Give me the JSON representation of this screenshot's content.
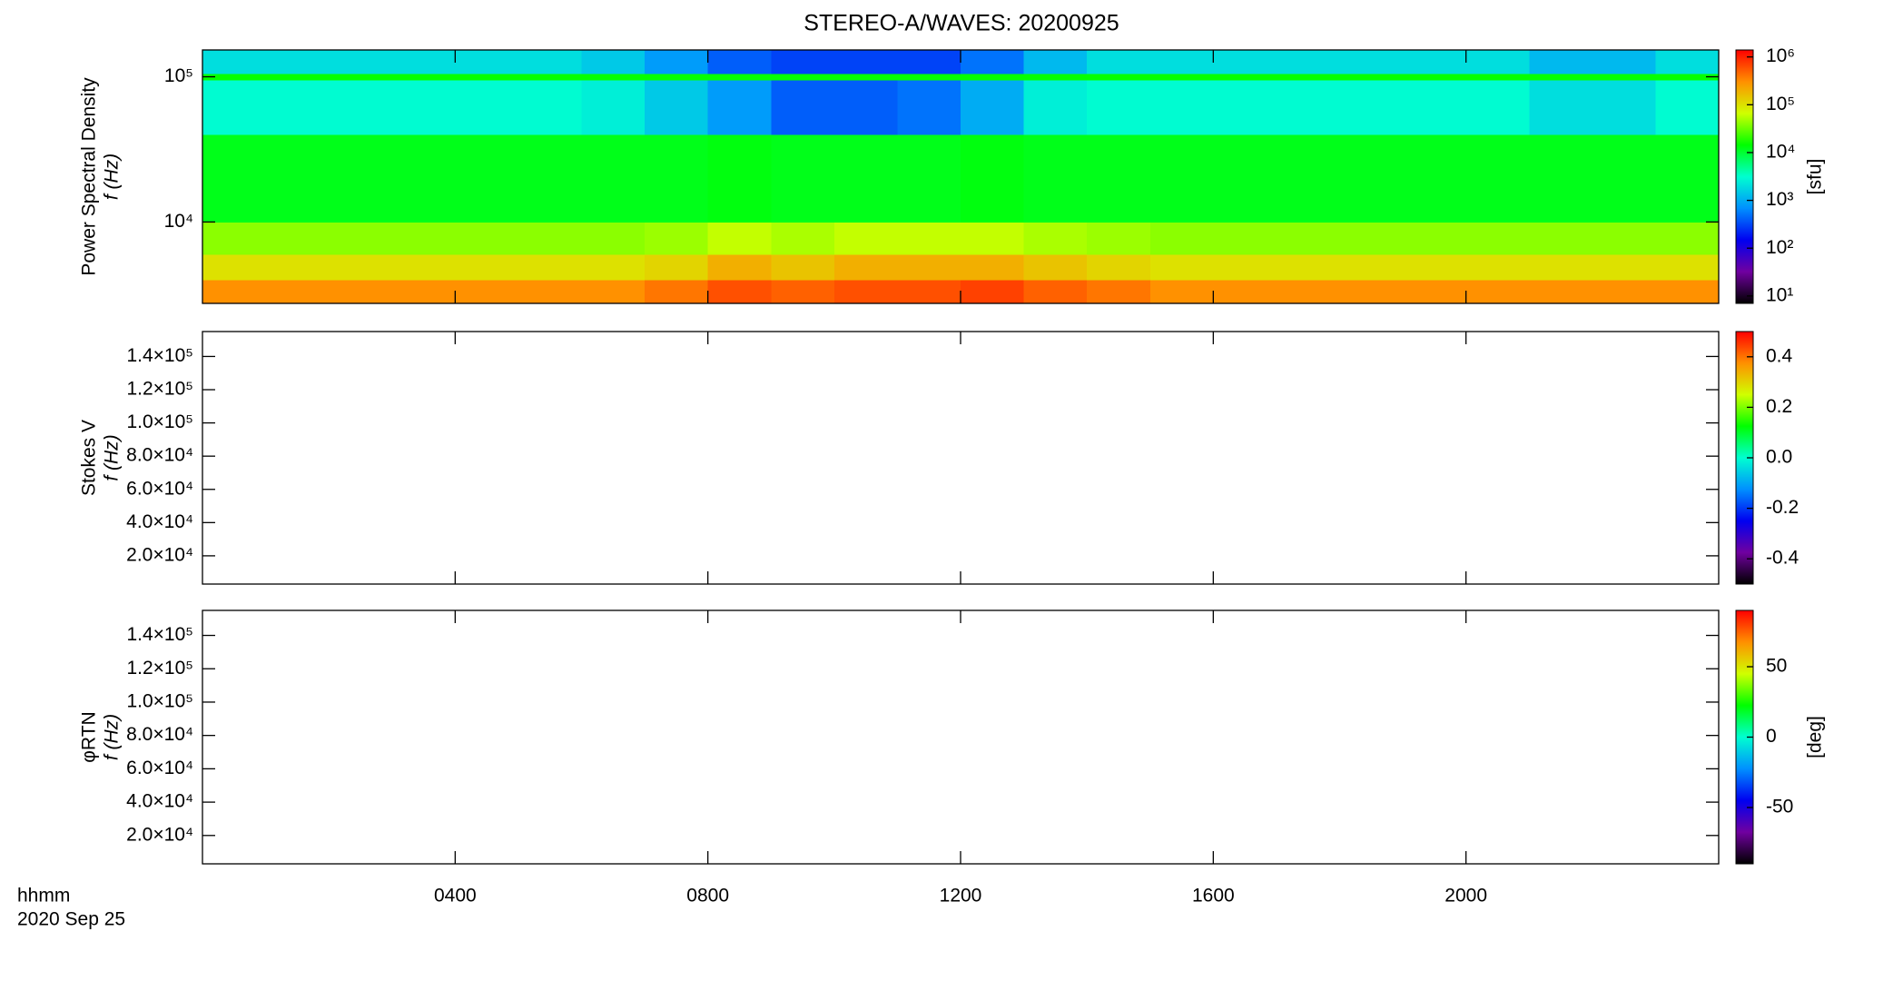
{
  "chart_data": [
    {
      "type": "heatmap",
      "title": "STEREO-A/WAVES: 20200925",
      "ylabel": [
        "Power Spectral Density",
        "f (Hz)"
      ],
      "log_y": true,
      "ylim": [
        2750,
        153000
      ],
      "yticks": [
        {
          "value": 10000,
          "label": "10⁴"
        },
        {
          "value": 100000,
          "label": "10⁵"
        }
      ],
      "xlim": [
        0,
        24
      ],
      "bins": [
        0,
        1,
        2,
        3,
        4,
        5,
        6,
        7,
        8,
        9,
        10,
        11,
        12,
        13,
        14,
        15,
        16,
        17,
        18,
        19,
        20,
        21,
        22,
        23,
        24
      ],
      "y_bins": [
        2750,
        4000,
        6000,
        10000,
        40000,
        95000,
        105000,
        153000
      ],
      "z": [
        [
          300000,
          300000,
          300000,
          300000,
          300000,
          300000,
          300000,
          400000,
          600000,
          500000,
          600000,
          600000,
          700000,
          500000,
          400000,
          300000,
          300000,
          300000,
          300000,
          300000,
          300000,
          300000,
          300000,
          300000
        ],
        [
          100000,
          100000,
          100000,
          100000,
          100000,
          100000,
          100000,
          120000,
          200000,
          150000,
          200000,
          200000,
          200000,
          150000,
          120000,
          100000,
          100000,
          100000,
          100000,
          100000,
          100000,
          100000,
          100000,
          100000
        ],
        [
          40000,
          40000,
          40000,
          40000,
          40000,
          40000,
          40000,
          45000,
          60000,
          50000,
          60000,
          60000,
          60000,
          50000,
          45000,
          40000,
          40000,
          40000,
          40000,
          40000,
          40000,
          40000,
          40000,
          40000
        ],
        [
          12000,
          12000,
          12000,
          12000,
          12000,
          12000,
          12000,
          12000,
          13000,
          12000,
          12000,
          12000,
          13000,
          12000,
          12000,
          12000,
          12000,
          12000,
          12000,
          12000,
          12000,
          12000,
          12000,
          12000
        ],
        [
          3000,
          3000,
          3000,
          3000,
          3000,
          3000,
          2500,
          1500,
          800,
          400,
          400,
          500,
          1000,
          2500,
          3000,
          3000,
          3000,
          3000,
          3000,
          3000,
          3000,
          2000,
          2000,
          3000
        ],
        [
          15000,
          15000,
          15000,
          15000,
          15000,
          15000,
          15000,
          15000,
          15000,
          15000,
          15000,
          15000,
          15000,
          15000,
          15000,
          15000,
          15000,
          15000,
          15000,
          15000,
          15000,
          15000,
          15000,
          15000
        ],
        [
          2000,
          2000,
          2000,
          2000,
          2000,
          2000,
          1500,
          800,
          400,
          300,
          300,
          300,
          500,
          1200,
          2000,
          2000,
          2000,
          2000,
          2000,
          2000,
          2000,
          1200,
          1200,
          2000
        ]
      ],
      "colorbar": {
        "label": "[sfu]",
        "log": true,
        "lim": [
          7,
          1400000
        ],
        "ticks": [
          {
            "value": 10,
            "label": "10¹"
          },
          {
            "value": 100,
            "label": "10²"
          },
          {
            "value": 1000,
            "label": "10³"
          },
          {
            "value": 10000,
            "label": "10⁴"
          },
          {
            "value": 100000,
            "label": "10⁵"
          },
          {
            "value": 1000000,
            "label": "10⁶"
          }
        ]
      },
      "colormap": [
        "#000000",
        "#7000a0",
        "#0000f0",
        "#0090ff",
        "#00ffd0",
        "#00ff00",
        "#d0ff00",
        "#ff9000",
        "#ff0000"
      ]
    },
    {
      "type": "heatmap",
      "ylabel": [
        "Stokes V",
        "f (Hz)"
      ],
      "ylim": [
        3000,
        155000
      ],
      "yticks": [
        {
          "value": 20000,
          "label": "2.0×10⁴"
        },
        {
          "value": 40000,
          "label": "4.0×10⁴"
        },
        {
          "value": 60000,
          "label": "6.0×10⁴"
        },
        {
          "value": 80000,
          "label": "8.0×10⁴"
        },
        {
          "value": 100000,
          "label": "1.0×10⁵"
        },
        {
          "value": 120000,
          "label": "1.2×10⁵"
        },
        {
          "value": 140000,
          "label": "1.4×10⁵"
        }
      ],
      "xlim": [
        0,
        24
      ],
      "colorbar": {
        "lim": [
          -0.5,
          0.5
        ],
        "ticks": [
          -0.4,
          -0.2,
          {
            "value": 0,
            "label": "0.0"
          },
          0.2,
          0.4
        ]
      },
      "colormap": [
        "#000000",
        "#7000a0",
        "#0000f0",
        "#0090ff",
        "#00ffd0",
        "#00ff00",
        "#d0ff00",
        "#ff9000",
        "#ff0000"
      ]
    },
    {
      "type": "heatmap",
      "ylabel": [
        "φRTN",
        "f (Hz)"
      ],
      "ylim": [
        3000,
        155000
      ],
      "yticks": [
        {
          "value": 20000,
          "label": "2.0×10⁴"
        },
        {
          "value": 40000,
          "label": "4.0×10⁴"
        },
        {
          "value": 60000,
          "label": "6.0×10⁴"
        },
        {
          "value": 80000,
          "label": "8.0×10⁴"
        },
        {
          "value": 100000,
          "label": "1.0×10⁵"
        },
        {
          "value": 120000,
          "label": "1.2×10⁵"
        },
        {
          "value": 140000,
          "label": "1.4×10⁵"
        }
      ],
      "xlim": [
        0,
        24
      ],
      "xticks": [
        {
          "value": 4,
          "label": "0400"
        },
        {
          "value": 8,
          "label": "0800"
        },
        {
          "value": 12,
          "label": "1200"
        },
        {
          "value": 16,
          "label": "1600"
        },
        {
          "value": 20,
          "label": "2000"
        }
      ],
      "xlabel": "hhmm",
      "date": "2020 Sep 25",
      "colorbar": {
        "label": "[deg]",
        "lim": [
          -90,
          90
        ],
        "ticks": [
          -50,
          0,
          50
        ]
      },
      "colormap": [
        "#000000",
        "#7000a0",
        "#0000f0",
        "#0090ff",
        "#00ffd0",
        "#00ff00",
        "#d0ff00",
        "#ff9000",
        "#ff0000"
      ]
    }
  ]
}
